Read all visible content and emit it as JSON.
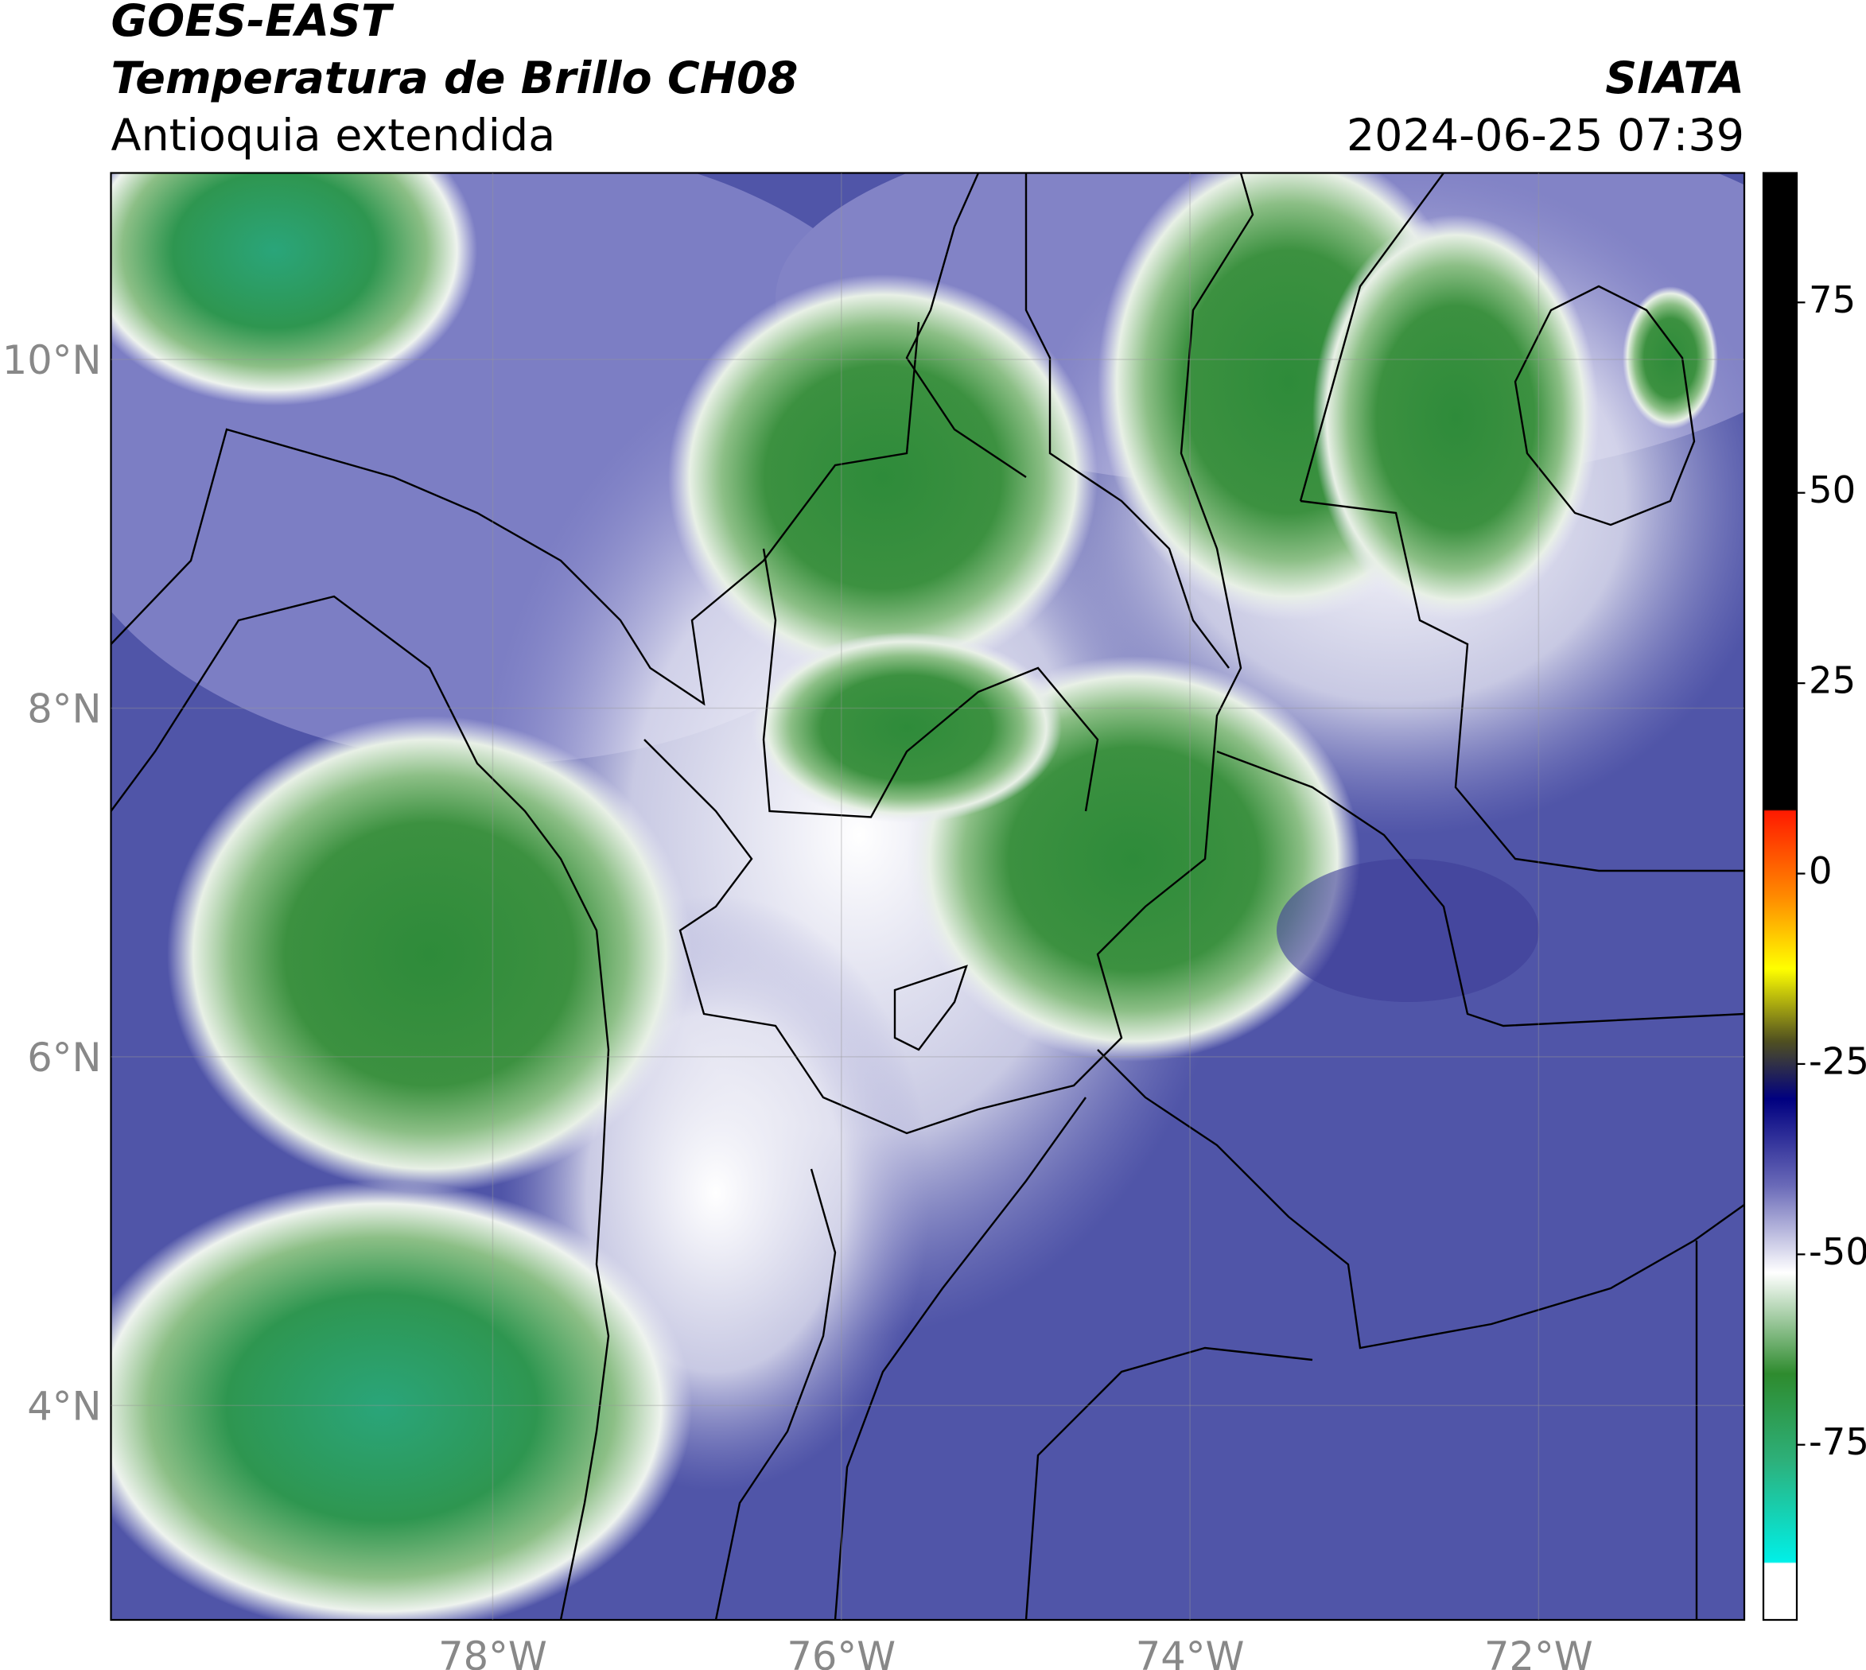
{
  "header": {
    "title": "GOES-EAST",
    "subtitle": "Temperatura de Brillo CH08",
    "region": "Antioquia extendida",
    "source": "SIATA",
    "datetime": "2024-06-25 07:39"
  },
  "map": {
    "lat_range": [
      2.77,
      11.07
    ],
    "lon_range": [
      -80.19,
      -70.82
    ],
    "lat_ticks": [
      {
        "value": 10,
        "label": "10°N"
      },
      {
        "value": 8,
        "label": "8°N"
      },
      {
        "value": 6,
        "label": "6°N"
      },
      {
        "value": 4,
        "label": "4°N"
      }
    ],
    "lon_ticks": [
      {
        "value": -78,
        "label": "78°W"
      },
      {
        "value": -76,
        "label": "76°W"
      },
      {
        "value": -74,
        "label": "74°W"
      },
      {
        "value": -72,
        "label": "72°W"
      }
    ]
  },
  "colorbar": {
    "lim": [
      -98,
      92
    ],
    "ticks": [
      75,
      50,
      25,
      0,
      -25,
      -50,
      -75
    ]
  }
}
